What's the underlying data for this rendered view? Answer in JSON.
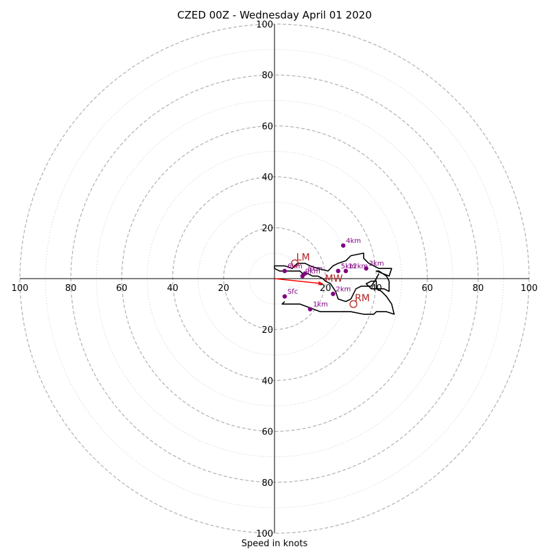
{
  "chart_data": {
    "type": "scatter",
    "title": "CZED 00Z - Wednesday April 01 2020",
    "xlabel": "Speed in knots",
    "ylabel": "",
    "rmax": 100,
    "rings_major": [
      20,
      40,
      60,
      80,
      100
    ],
    "rings_minor": [
      10,
      30,
      50,
      70,
      90
    ],
    "tick_values": [
      20,
      40,
      60,
      80,
      100
    ],
    "colors": {
      "hodograph": "#000000",
      "points": "#800080",
      "motion": "#b22222",
      "mean_wind_arrow": "#ff0000",
      "grid": "#b0b0b0",
      "minor_grid": "#c8c8c8"
    },
    "hodograph": [
      [
        4,
        -9
      ],
      [
        3,
        -10
      ],
      [
        10,
        -10
      ],
      [
        18,
        -13
      ],
      [
        24,
        -13
      ],
      [
        30,
        -13
      ],
      [
        35,
        -14
      ],
      [
        39,
        -14
      ],
      [
        40,
        -13
      ],
      [
        44,
        -13
      ],
      [
        47,
        -14
      ],
      [
        46,
        -10
      ],
      [
        44,
        -7
      ],
      [
        42,
        -5
      ],
      [
        40,
        -4
      ],
      [
        40,
        -1
      ],
      [
        38,
        -1
      ],
      [
        36,
        -2
      ],
      [
        38,
        -4
      ],
      [
        43,
        -4
      ],
      [
        45,
        -5
      ],
      [
        45,
        -1
      ],
      [
        44,
        1
      ],
      [
        41,
        3
      ],
      [
        40,
        3
      ],
      [
        45,
        1
      ],
      [
        46,
        4
      ],
      [
        41,
        4
      ],
      [
        37,
        6
      ],
      [
        35,
        8
      ],
      [
        35,
        10
      ],
      [
        30,
        9
      ],
      [
        28,
        7
      ],
      [
        25,
        6
      ],
      [
        23,
        5
      ],
      [
        21,
        3
      ],
      [
        17,
        4
      ],
      [
        14,
        5
      ],
      [
        12,
        6
      ],
      [
        9,
        6
      ],
      [
        7,
        4
      ],
      [
        4,
        5
      ],
      [
        2,
        5
      ],
      [
        0,
        5
      ],
      [
        0,
        4
      ],
      [
        2,
        3
      ],
      [
        5,
        3
      ],
      [
        10,
        3
      ],
      [
        11,
        2
      ],
      [
        13,
        2
      ],
      [
        15,
        1
      ],
      [
        17,
        1
      ],
      [
        19,
        0
      ],
      [
        20,
        -1
      ],
      [
        22,
        -2
      ],
      [
        24,
        -5
      ],
      [
        25,
        -8
      ],
      [
        28,
        -9
      ],
      [
        30,
        -8
      ],
      [
        31,
        -6
      ],
      [
        32,
        -4
      ],
      [
        34,
        -3
      ],
      [
        38,
        -3
      ],
      [
        40,
        0
      ],
      [
        41,
        2
      ]
    ],
    "points": [
      {
        "label": "Sfc",
        "u": 4,
        "v": -7
      },
      {
        "label": "1km",
        "u": 14,
        "v": -12
      },
      {
        "label": "2km",
        "u": 23,
        "v": -6
      },
      {
        "label": "3km",
        "u": 36,
        "v": 4
      },
      {
        "label": "4km",
        "u": 27,
        "v": 13
      },
      {
        "label": "5km",
        "u": 25,
        "v": 3
      },
      {
        "label": "6km",
        "u": 4,
        "v": 3
      },
      {
        "label": "8km",
        "u": 12,
        "v": 2
      },
      {
        "label": "9km",
        "u": 11,
        "v": 1
      },
      {
        "label": "12km",
        "u": 28,
        "v": 3
      }
    ],
    "motions": [
      {
        "label": "LM",
        "u": 8,
        "v": 6
      },
      {
        "label": "RM",
        "u": 31,
        "v": -10
      }
    ],
    "mean_wind": {
      "label": "MW",
      "u": 19,
      "v": -2
    }
  }
}
